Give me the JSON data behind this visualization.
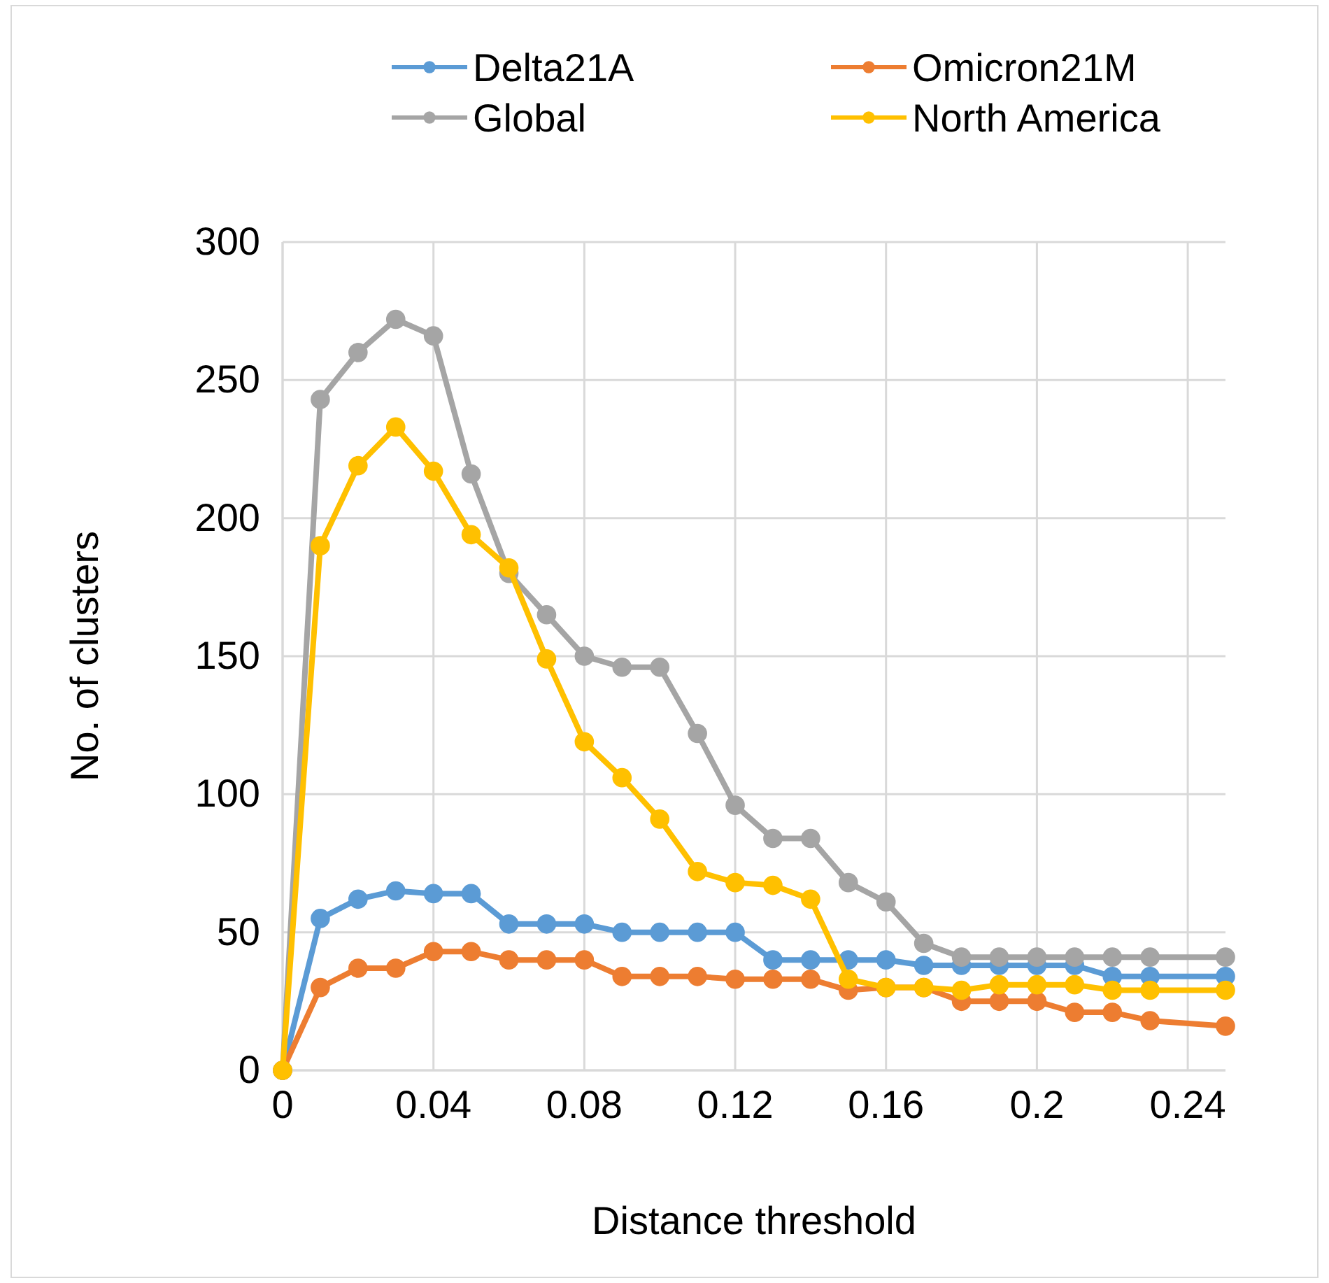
{
  "chart_data": {
    "type": "line",
    "xlabel": "Distance threshold",
    "ylabel": "No. of clusters",
    "x": [
      0,
      0.01,
      0.02,
      0.03,
      0.04,
      0.05,
      0.06,
      0.07,
      0.08,
      0.09,
      0.1,
      0.11,
      0.12,
      0.13,
      0.14,
      0.15,
      0.16,
      0.17,
      0.18,
      0.19,
      0.2,
      0.21,
      0.22,
      0.23,
      0.25
    ],
    "xlim": [
      0,
      0.25
    ],
    "xticks": [
      0,
      0.04,
      0.08,
      0.12,
      0.16,
      0.2,
      0.24
    ],
    "ylim": [
      0,
      300
    ],
    "yticks": [
      0,
      50,
      100,
      150,
      200,
      250,
      300
    ],
    "grid": true,
    "legend": "top",
    "marker": "circle",
    "line_style": "solid",
    "series": [
      {
        "name": "Delta21A",
        "color": "#5b9bd5",
        "values": [
          0,
          55,
          62,
          65,
          64,
          64,
          53,
          53,
          53,
          50,
          50,
          50,
          50,
          40,
          40,
          40,
          40,
          38,
          38,
          38,
          38,
          38,
          34,
          34,
          34
        ]
      },
      {
        "name": "Omicron21M",
        "color": "#ed7d31",
        "values": [
          0,
          30,
          37,
          37,
          43,
          43,
          40,
          40,
          40,
          34,
          34,
          34,
          33,
          33,
          33,
          29,
          30,
          30,
          25,
          25,
          25,
          21,
          21,
          18,
          16
        ]
      },
      {
        "name": "Global",
        "color": "#a5a5a5",
        "values": [
          0,
          243,
          260,
          272,
          266,
          216,
          180,
          165,
          150,
          146,
          146,
          122,
          96,
          84,
          84,
          68,
          61,
          46,
          41,
          41,
          41,
          41,
          41,
          41,
          41
        ]
      },
      {
        "name": "North America",
        "color": "#ffc000",
        "values": [
          0,
          190,
          219,
          233,
          217,
          194,
          182,
          149,
          119,
          106,
          91,
          72,
          68,
          67,
          62,
          33,
          30,
          30,
          29,
          31,
          31,
          31,
          29,
          29,
          29
        ]
      }
    ]
  }
}
